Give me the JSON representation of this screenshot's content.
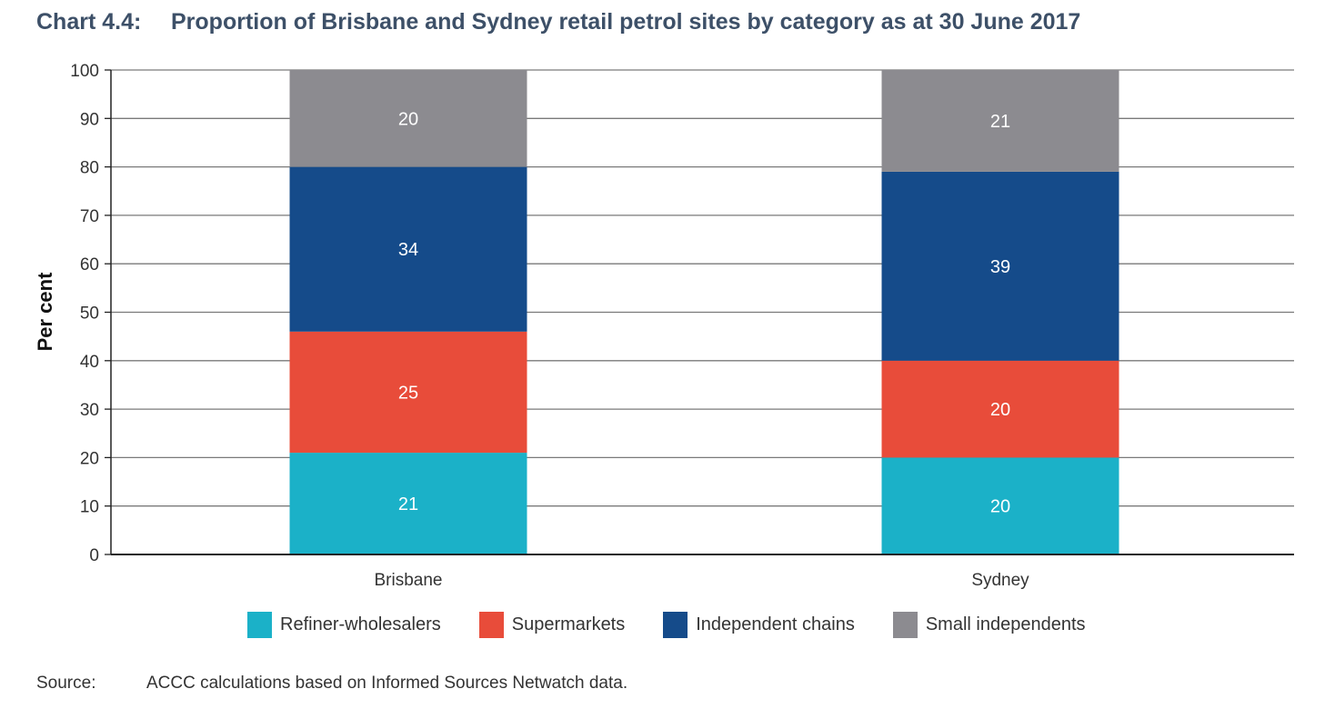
{
  "title": {
    "number": "Chart 4.4:",
    "text": "Proportion of Brisbane and Sydney retail petrol sites by category as at 30 June 2017"
  },
  "source": {
    "label": "Source:",
    "text": "ACCC calculations based on Informed Sources Netwatch data."
  },
  "chart_data": {
    "type": "bar",
    "stacked": true,
    "title": "Proportion of Brisbane and Sydney retail petrol sites by category as at 30 June 2017",
    "categories": [
      "Brisbane",
      "Sydney"
    ],
    "series": [
      {
        "name": "Refiner-wholesalers",
        "values": [
          21,
          20
        ],
        "color": "#1bb1c8"
      },
      {
        "name": "Supermarkets",
        "values": [
          25,
          20
        ],
        "color": "#e84c3a"
      },
      {
        "name": "Independent chains",
        "values": [
          34,
          39
        ],
        "color": "#154b8a"
      },
      {
        "name": "Small independents",
        "values": [
          20,
          21
        ],
        "color": "#8c8b90"
      }
    ],
    "xlabel": "",
    "ylabel": "Per cent",
    "ylim": [
      0,
      100
    ],
    "yticks": [
      0,
      10,
      20,
      30,
      40,
      50,
      60,
      70,
      80,
      90,
      100
    ],
    "grid": true,
    "legend": "bottom"
  }
}
